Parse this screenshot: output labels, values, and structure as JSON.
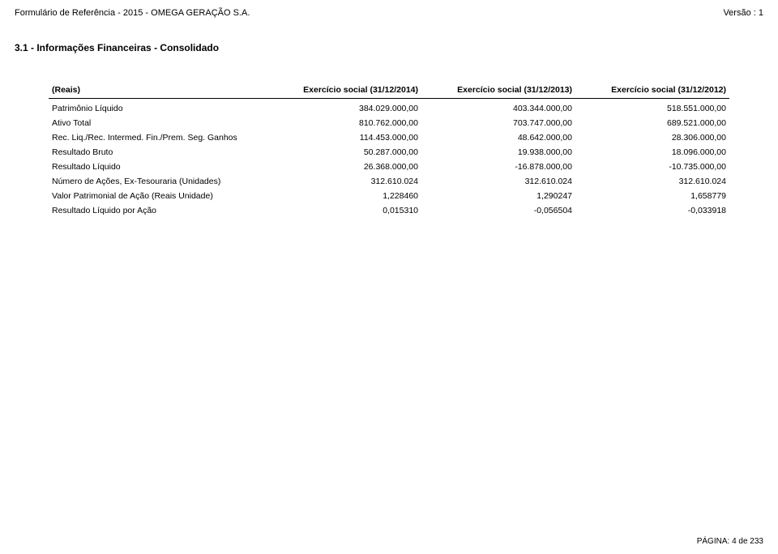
{
  "header": {
    "left": "Formulário de Referência - 2015 - OMEGA GERAÇÃO S.A.",
    "right": "Versão : 1"
  },
  "section_title": "3.1 - Informações Financeiras - Consolidado",
  "table": {
    "columns": [
      "(Reais)",
      "Exercício social (31/12/2014)",
      "Exercício social (31/12/2013)",
      "Exercício social (31/12/2012)"
    ],
    "rows": [
      [
        "Patrimônio Líquido",
        "384.029.000,00",
        "403.344.000,00",
        "518.551.000,00"
      ],
      [
        "Ativo Total",
        "810.762.000,00",
        "703.747.000,00",
        "689.521.000,00"
      ],
      [
        "Rec. Liq./Rec. Intermed. Fin./Prem. Seg. Ganhos",
        "114.453.000,00",
        "48.642.000,00",
        "28.306.000,00"
      ],
      [
        "Resultado Bruto",
        "50.287.000,00",
        "19.938.000,00",
        "18.096.000,00"
      ],
      [
        "Resultado Líquido",
        "26.368.000,00",
        "-16.878.000,00",
        "-10.735.000,00"
      ],
      [
        "Número de Ações, Ex-Tesouraria (Unidades)",
        "312.610.024",
        "312.610.024",
        "312.610.024"
      ],
      [
        "Valor Patrimonial de Ação (Reais Unidade)",
        "1,228460",
        "1,290247",
        "1,658779"
      ],
      [
        "Resultado Líquido por Ação",
        "0,015310",
        "-0,056504",
        "-0,033918"
      ]
    ]
  },
  "footer": "PÁGINA: 4 de 233"
}
